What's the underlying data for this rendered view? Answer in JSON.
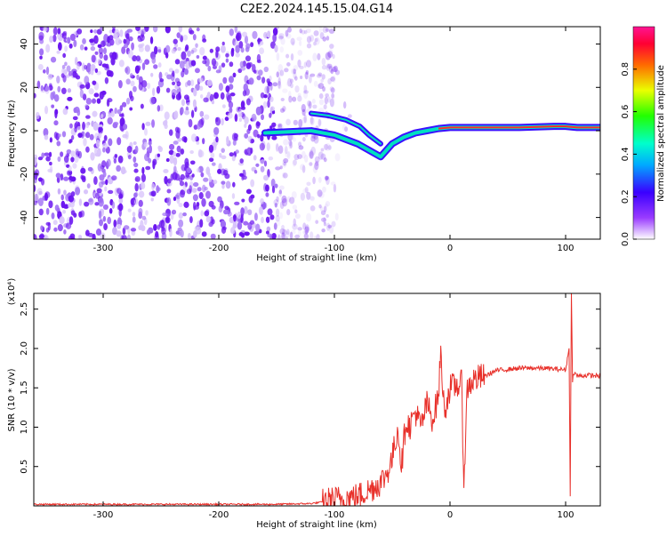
{
  "title": "C2E2.2024.145.15.04.G14",
  "colors": {
    "snr_line": "#e8302a",
    "scatter": "#7a2cf0",
    "axis": "#000000"
  },
  "chart_data": [
    {
      "type": "heatmap",
      "xlabel": "Height of straight line (km)",
      "ylabel": "Frequency (Hz)",
      "xlim": [
        -360,
        130
      ],
      "ylim": [
        -50,
        48
      ],
      "xticks": [
        "-300",
        "-200",
        "-100",
        "0",
        "100"
      ],
      "xtick_values": [
        -300,
        -200,
        -100,
        0,
        100
      ],
      "yticks": [
        "40",
        "20",
        "0",
        "-20",
        "-40"
      ],
      "ytick_values": [
        40,
        20,
        0,
        -20,
        -40
      ],
      "colorbar": {
        "label": "Normalized spectral amplitude",
        "range": [
          0,
          1
        ],
        "ticks": [
          "0.0",
          "0.2",
          "0.4",
          "0.6",
          "0.8"
        ],
        "tick_values": [
          0.0,
          0.2,
          0.4,
          0.6,
          0.8
        ]
      },
      "ridge": {
        "x": [
          -160,
          -140,
          -120,
          -100,
          -80,
          -60,
          -50,
          -40,
          -30,
          -20,
          -10,
          0,
          20,
          60,
          90,
          100,
          110,
          130
        ],
        "y": [
          -1,
          -0.5,
          0,
          -2,
          -6,
          -12,
          -6,
          -3,
          -1,
          0,
          1,
          1.5,
          1.5,
          1.5,
          2,
          2,
          1.5,
          1.5
        ]
      },
      "upper_branch": {
        "x": [
          -120,
          -105,
          -90,
          -78,
          -70,
          -60
        ],
        "y": [
          8,
          7,
          5,
          2,
          -2,
          -6
        ]
      }
    },
    {
      "type": "line",
      "xlabel": "Height of straight line (km)",
      "ylabel": "SNR (10 * v/v)",
      "scale_label": "(x10⁴)",
      "xlim": [
        -360,
        130
      ],
      "ylim": [
        0,
        2.7
      ],
      "xticks": [
        "-300",
        "-200",
        "-100",
        "0",
        "100"
      ],
      "xtick_values": [
        -300,
        -200,
        -100,
        0,
        100
      ],
      "yticks": [
        "2.5",
        "2.0",
        "1.5",
        "1.0",
        "0.5"
      ],
      "ytick_values": [
        2.5,
        2.0,
        1.5,
        1.0,
        0.5
      ],
      "series": [
        {
          "x": [
            -360,
            -300,
            -250,
            -200,
            -150,
            -120,
            -110,
            -100,
            -90,
            -80,
            -70,
            -60,
            -55,
            -50,
            -45,
            -42,
            -40,
            -38,
            -35,
            -30,
            -25,
            -20,
            -15,
            -10,
            -8,
            -5,
            0,
            10,
            12,
            15,
            20,
            30,
            40,
            60,
            80,
            100,
            103,
            104,
            105,
            106,
            107,
            110,
            120,
            130
          ],
          "y": [
            0.02,
            0.02,
            0.02,
            0.02,
            0.02,
            0.03,
            0.05,
            0.08,
            0.1,
            0.12,
            0.2,
            0.3,
            0.4,
            0.6,
            1.0,
            0.5,
            0.8,
            1.1,
            1.0,
            1.2,
            1.0,
            1.3,
            1.1,
            1.4,
            1.95,
            1.2,
            1.5,
            1.55,
            0.3,
            1.5,
            1.6,
            1.65,
            1.72,
            1.75,
            1.75,
            1.73,
            2.0,
            0.15,
            2.7,
            1.6,
            1.7,
            1.65,
            1.66,
            1.65
          ]
        }
      ]
    }
  ]
}
